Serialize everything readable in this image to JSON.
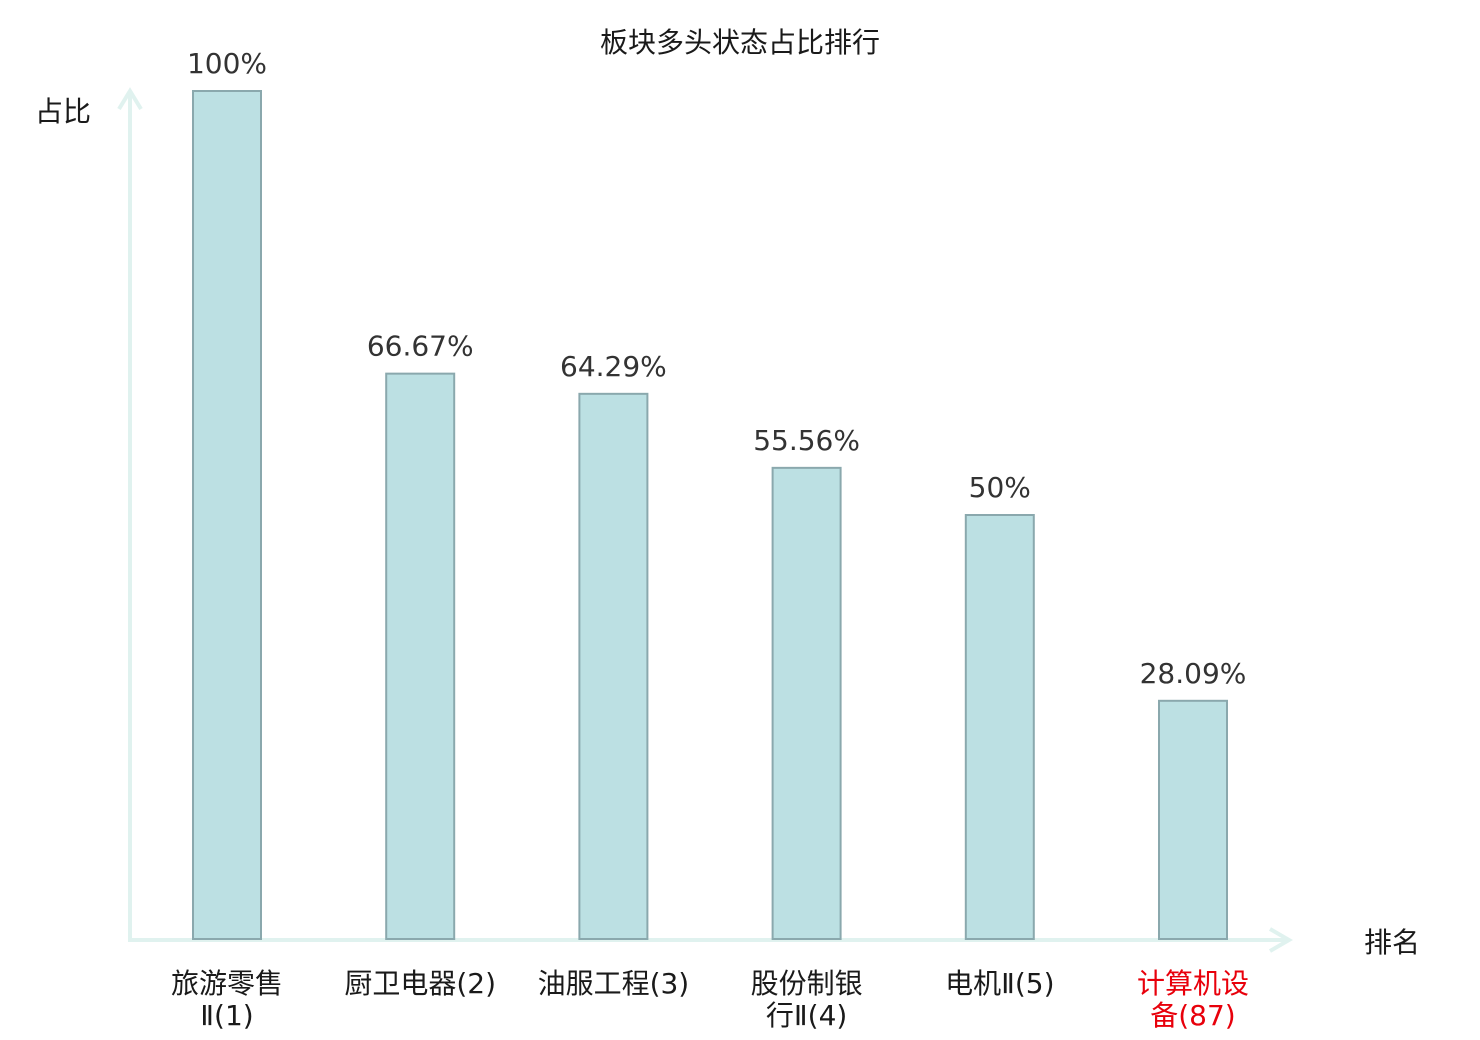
{
  "chart_data": {
    "type": "bar",
    "title": "板块多头状态占比排行",
    "ylabel": "占比",
    "xlabel": "排名",
    "ylim": [
      0,
      100
    ],
    "grid": false,
    "categories": [
      {
        "lines": [
          "旅游零售",
          "Ⅱ(1)"
        ],
        "highlight": false
      },
      {
        "lines": [
          "厨卫电器(2)"
        ],
        "highlight": false
      },
      {
        "lines": [
          "油服工程(3)"
        ],
        "highlight": false
      },
      {
        "lines": [
          "股份制银",
          "行Ⅱ(4)"
        ],
        "highlight": false
      },
      {
        "lines": [
          "电机Ⅱ(5)"
        ],
        "highlight": false
      },
      {
        "lines": [
          "计算机设",
          "备(87)"
        ],
        "highlight": true
      }
    ],
    "values": [
      100,
      66.67,
      64.29,
      55.56,
      50,
      28.09
    ],
    "value_labels": [
      "100%",
      "66.67%",
      "64.29%",
      "55.56%",
      "50%",
      "28.09%"
    ],
    "colors": {
      "bar_fill": "#bce0e3",
      "bar_stroke": "#8aa8ad",
      "axis": "#e0f2ef",
      "label_text": "#1a1a1a",
      "highlight_text": "#e8000b"
    }
  }
}
